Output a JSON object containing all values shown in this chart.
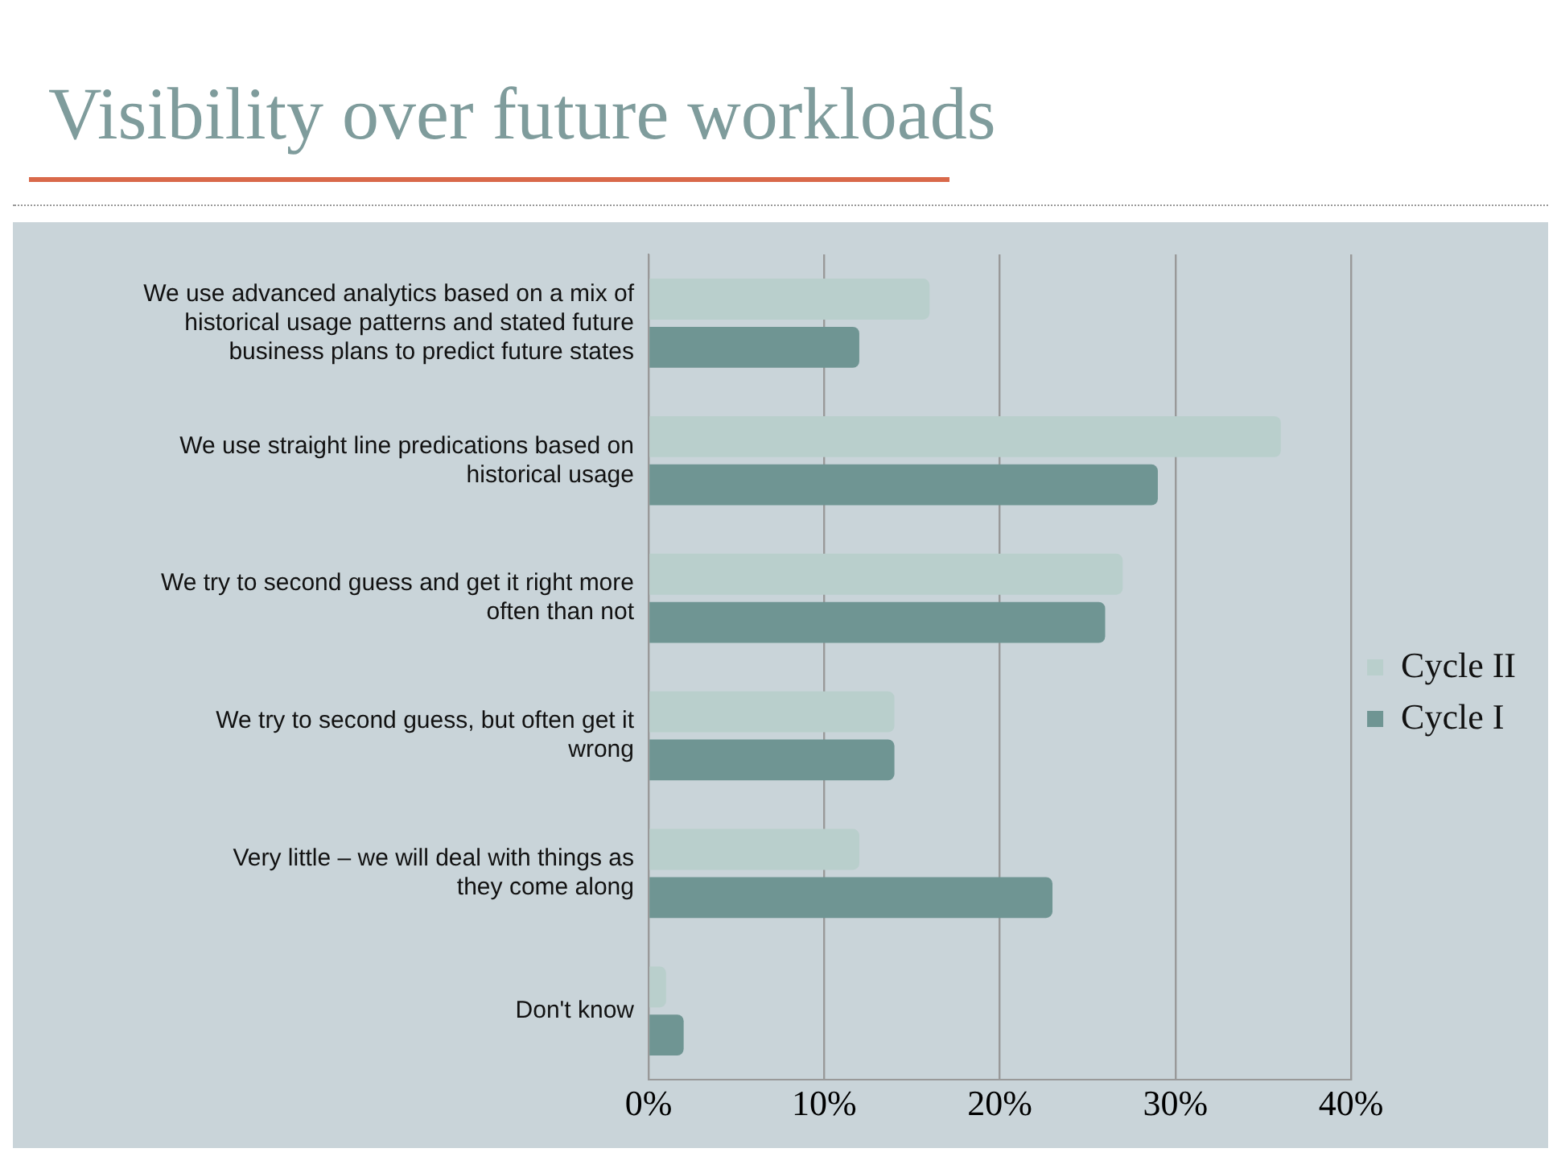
{
  "chart_data": {
    "type": "bar",
    "orientation": "horizontal",
    "title": "Visibility over future workloads",
    "categories": [
      "We use advanced analytics based on a mix of historical usage patterns and stated future business plans to predict future states",
      "We use straight line predications based on historical usage",
      "We try to second guess and get it right more often than not",
      "We try to second guess, but often get it wrong",
      "Very little – we will deal with things as they come along",
      "Don't know"
    ],
    "series": [
      {
        "name": "Cycle II",
        "color": "#b9cfcc",
        "values": [
          16,
          36,
          27,
          14,
          12,
          1
        ]
      },
      {
        "name": "Cycle I",
        "color": "#6f9593",
        "values": [
          12,
          29,
          26,
          14,
          23,
          2
        ]
      }
    ],
    "xlim": [
      0,
      40
    ],
    "xticks": [
      {
        "value": 0,
        "label": "0%"
      },
      {
        "value": 10,
        "label": "10%"
      },
      {
        "value": 20,
        "label": "20%"
      },
      {
        "value": 30,
        "label": "30%"
      },
      {
        "value": 40,
        "label": "40%"
      }
    ],
    "grid": "x",
    "legend": "right"
  }
}
